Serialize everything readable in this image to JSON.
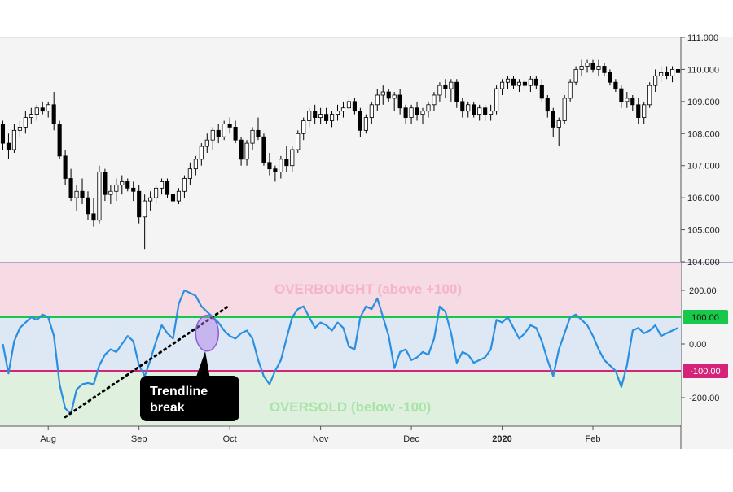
{
  "chart_data": [
    {
      "type": "candlestick",
      "title": "",
      "ylim": [
        104.0,
        111.0
      ],
      "y_ticks": [
        "111.000",
        "110.000",
        "109.000",
        "108.000",
        "107.000",
        "106.000",
        "105.000",
        "104.000"
      ],
      "y_tick_values": [
        111,
        110,
        109,
        108,
        107,
        106,
        105,
        104
      ],
      "colors": {
        "up": "#ffffff",
        "down": "#000000",
        "wick": "#000000"
      },
      "ohlc": [
        [
          108.3,
          108.4,
          107.5,
          107.7
        ],
        [
          107.7,
          108.0,
          107.2,
          107.5
        ],
        [
          107.5,
          108.3,
          107.4,
          108.1
        ],
        [
          108.1,
          108.4,
          107.9,
          108.2
        ],
        [
          108.2,
          108.7,
          108.0,
          108.5
        ],
        [
          108.5,
          108.8,
          108.3,
          108.6
        ],
        [
          108.6,
          108.9,
          108.4,
          108.8
        ],
        [
          108.8,
          109.0,
          108.6,
          108.7
        ],
        [
          108.7,
          109.0,
          108.5,
          108.9
        ],
        [
          108.9,
          109.3,
          108.1,
          108.3
        ],
        [
          108.3,
          108.4,
          107.2,
          107.3
        ],
        [
          107.3,
          107.5,
          106.4,
          106.6
        ],
        [
          106.6,
          106.9,
          105.9,
          106.0
        ],
        [
          106.0,
          106.4,
          105.6,
          106.2
        ],
        [
          106.2,
          106.6,
          105.8,
          106.0
        ],
        [
          106.0,
          106.2,
          105.3,
          105.5
        ],
        [
          105.5,
          106.0,
          105.1,
          105.3
        ],
        [
          105.3,
          107.0,
          105.2,
          106.8
        ],
        [
          106.8,
          106.9,
          105.9,
          106.1
        ],
        [
          106.1,
          106.4,
          105.8,
          106.2
        ],
        [
          106.2,
          106.6,
          105.9,
          106.4
        ],
        [
          106.4,
          106.7,
          106.1,
          106.5
        ],
        [
          106.5,
          106.6,
          106.2,
          106.3
        ],
        [
          106.3,
          106.5,
          105.9,
          106.2
        ],
        [
          106.2,
          106.4,
          105.2,
          105.4
        ],
        [
          105.4,
          106.1,
          104.4,
          105.9
        ],
        [
          105.9,
          106.2,
          105.6,
          106.0
        ],
        [
          106.0,
          106.4,
          105.8,
          106.3
        ],
        [
          106.3,
          106.6,
          106.1,
          106.5
        ],
        [
          106.5,
          106.6,
          106.0,
          106.1
        ],
        [
          106.1,
          106.2,
          105.7,
          105.9
        ],
        [
          105.9,
          106.3,
          105.8,
          106.2
        ],
        [
          106.2,
          106.7,
          106.0,
          106.6
        ],
        [
          106.6,
          107.1,
          106.4,
          106.9
        ],
        [
          106.9,
          107.3,
          106.7,
          107.2
        ],
        [
          107.2,
          107.7,
          107.0,
          107.6
        ],
        [
          107.6,
          108.0,
          107.4,
          107.8
        ],
        [
          107.8,
          108.2,
          107.5,
          108.1
        ],
        [
          108.1,
          108.3,
          107.7,
          107.9
        ],
        [
          107.9,
          108.4,
          107.8,
          108.3
        ],
        [
          108.3,
          108.5,
          108.0,
          108.2
        ],
        [
          108.2,
          108.4,
          107.7,
          107.8
        ],
        [
          107.8,
          107.9,
          107.0,
          107.2
        ],
        [
          107.2,
          107.8,
          107.0,
          107.7
        ],
        [
          107.7,
          108.2,
          107.5,
          108.1
        ],
        [
          108.1,
          108.5,
          107.8,
          107.9
        ],
        [
          107.9,
          108.0,
          107.0,
          107.1
        ],
        [
          107.1,
          107.4,
          106.7,
          106.9
        ],
        [
          106.9,
          107.0,
          106.5,
          106.8
        ],
        [
          106.8,
          107.3,
          106.6,
          107.2
        ],
        [
          107.2,
          107.6,
          106.8,
          107.0
        ],
        [
          107.0,
          107.6,
          106.8,
          107.5
        ],
        [
          107.5,
          108.1,
          107.4,
          108.0
        ],
        [
          108.0,
          108.5,
          107.8,
          108.4
        ],
        [
          108.4,
          108.8,
          108.2,
          108.7
        ],
        [
          108.7,
          108.9,
          108.3,
          108.5
        ],
        [
          108.5,
          108.8,
          108.3,
          108.6
        ],
        [
          108.6,
          108.8,
          108.3,
          108.4
        ],
        [
          108.4,
          108.7,
          108.2,
          108.6
        ],
        [
          108.6,
          108.9,
          108.4,
          108.7
        ],
        [
          108.7,
          109.0,
          108.5,
          108.8
        ],
        [
          108.8,
          109.2,
          108.7,
          109.0
        ],
        [
          109.0,
          109.1,
          108.6,
          108.7
        ],
        [
          108.7,
          108.8,
          107.9,
          108.1
        ],
        [
          108.1,
          108.6,
          108.0,
          108.5
        ],
        [
          108.5,
          109.0,
          108.3,
          108.9
        ],
        [
          108.9,
          109.4,
          108.7,
          109.2
        ],
        [
          109.2,
          109.5,
          108.9,
          109.3
        ],
        [
          109.3,
          109.4,
          109.0,
          109.1
        ],
        [
          109.1,
          109.3,
          108.7,
          109.2
        ],
        [
          109.2,
          109.4,
          108.6,
          108.8
        ],
        [
          108.8,
          108.9,
          108.3,
          108.5
        ],
        [
          108.5,
          108.9,
          108.3,
          108.8
        ],
        [
          108.8,
          109.0,
          108.4,
          108.6
        ],
        [
          108.6,
          108.8,
          108.3,
          108.7
        ],
        [
          108.7,
          109.0,
          108.5,
          108.9
        ],
        [
          108.9,
          109.3,
          108.7,
          109.2
        ],
        [
          109.2,
          109.6,
          109.0,
          109.5
        ],
        [
          109.5,
          109.7,
          109.1,
          109.4
        ],
        [
          109.4,
          109.7,
          109.0,
          109.6
        ],
        [
          109.6,
          109.7,
          108.8,
          109.0
        ],
        [
          109.0,
          109.1,
          108.5,
          108.7
        ],
        [
          108.7,
          109.0,
          108.5,
          108.9
        ],
        [
          108.9,
          109.0,
          108.5,
          108.6
        ],
        [
          108.6,
          108.9,
          108.4,
          108.8
        ],
        [
          108.8,
          108.9,
          108.4,
          108.6
        ],
        [
          108.6,
          108.9,
          108.4,
          108.7
        ],
        [
          108.7,
          109.5,
          108.6,
          109.4
        ],
        [
          109.4,
          109.7,
          109.2,
          109.6
        ],
        [
          109.6,
          109.8,
          109.4,
          109.7
        ],
        [
          109.7,
          109.8,
          109.4,
          109.5
        ],
        [
          109.5,
          109.7,
          109.3,
          109.6
        ],
        [
          109.6,
          109.7,
          109.4,
          109.5
        ],
        [
          109.5,
          109.8,
          109.3,
          109.7
        ],
        [
          109.7,
          109.8,
          109.4,
          109.5
        ],
        [
          109.5,
          109.7,
          109.0,
          109.1
        ],
        [
          109.1,
          109.2,
          108.5,
          108.7
        ],
        [
          108.7,
          108.8,
          107.9,
          108.2
        ],
        [
          108.2,
          108.5,
          107.6,
          108.4
        ],
        [
          108.4,
          109.2,
          108.3,
          109.1
        ],
        [
          109.1,
          109.7,
          109.0,
          109.6
        ],
        [
          109.6,
          110.1,
          109.5,
          110.0
        ],
        [
          110.0,
          110.3,
          109.8,
          110.1
        ],
        [
          110.1,
          110.3,
          109.9,
          110.2
        ],
        [
          110.2,
          110.3,
          109.9,
          110.0
        ],
        [
          110.0,
          110.3,
          109.8,
          110.1
        ],
        [
          110.1,
          110.2,
          109.8,
          109.9
        ],
        [
          109.9,
          110.0,
          109.5,
          109.6
        ],
        [
          109.6,
          109.7,
          109.3,
          109.4
        ],
        [
          109.4,
          109.5,
          108.8,
          109.0
        ],
        [
          109.0,
          109.3,
          108.8,
          109.1
        ],
        [
          109.1,
          109.2,
          108.7,
          108.9
        ],
        [
          108.9,
          109.1,
          108.3,
          108.5
        ],
        [
          108.5,
          109.0,
          108.3,
          108.9
        ],
        [
          108.9,
          109.6,
          108.8,
          109.5
        ],
        [
          109.5,
          110.0,
          109.3,
          109.8
        ],
        [
          109.8,
          110.1,
          109.6,
          109.9
        ],
        [
          109.9,
          110.1,
          109.7,
          109.8
        ],
        [
          109.8,
          110.1,
          109.6,
          110.0
        ],
        [
          110.0,
          110.1,
          109.7,
          109.9
        ]
      ]
    },
    {
      "type": "line",
      "ylim": [
        -300,
        300
      ],
      "y_ticks": [
        "200.00",
        "0.00",
        "-200.00"
      ],
      "y_tick_values": [
        200,
        0,
        -200
      ],
      "x_ticks": [
        "Aug",
        "Sep",
        "Oct",
        "Nov",
        "Dec",
        "2020",
        "Feb"
      ],
      "x_tick_index": [
        8,
        24,
        40,
        56,
        72,
        88,
        104
      ],
      "series_color": "#2a8fe0",
      "values": [
        0,
        -110,
        10,
        60,
        80,
        100,
        90,
        110,
        100,
        30,
        -150,
        -240,
        -260,
        -170,
        -150,
        -145,
        -150,
        -80,
        -40,
        -20,
        -30,
        0,
        30,
        10,
        -80,
        -120,
        -60,
        10,
        70,
        40,
        20,
        150,
        200,
        190,
        180,
        140,
        120,
        100,
        80,
        50,
        30,
        20,
        40,
        50,
        20,
        -60,
        -120,
        -150,
        -100,
        -60,
        20,
        100,
        130,
        140,
        100,
        60,
        80,
        70,
        50,
        80,
        60,
        -10,
        -20,
        100,
        140,
        130,
        170,
        100,
        30,
        -90,
        -30,
        -20,
        -60,
        -50,
        -30,
        -40,
        20,
        140,
        120,
        40,
        -70,
        -30,
        -40,
        -70,
        -60,
        -50,
        -20,
        90,
        80,
        100,
        60,
        20,
        40,
        70,
        60,
        10,
        -60,
        -120,
        -20,
        40,
        100,
        110,
        90,
        70,
        30,
        -20,
        -60,
        -80,
        -100,
        -160,
        -80,
        50,
        60,
        40,
        50,
        70,
        30,
        40,
        50,
        60
      ],
      "levels": [
        {
          "value": 100,
          "label": "100.00",
          "color": "#17c84a"
        },
        {
          "value": -100,
          "label": "-100.00",
          "color": "#d6237a"
        }
      ],
      "zones": [
        {
          "label": "OVERBOUGHT (above  +100)",
          "color": "#f5b4c8"
        },
        {
          "label": "OVERSOLD (below -100)",
          "color": "#a8e3a8"
        }
      ],
      "annotations": {
        "trendline_callout": "Trendline\nbreak"
      }
    }
  ]
}
